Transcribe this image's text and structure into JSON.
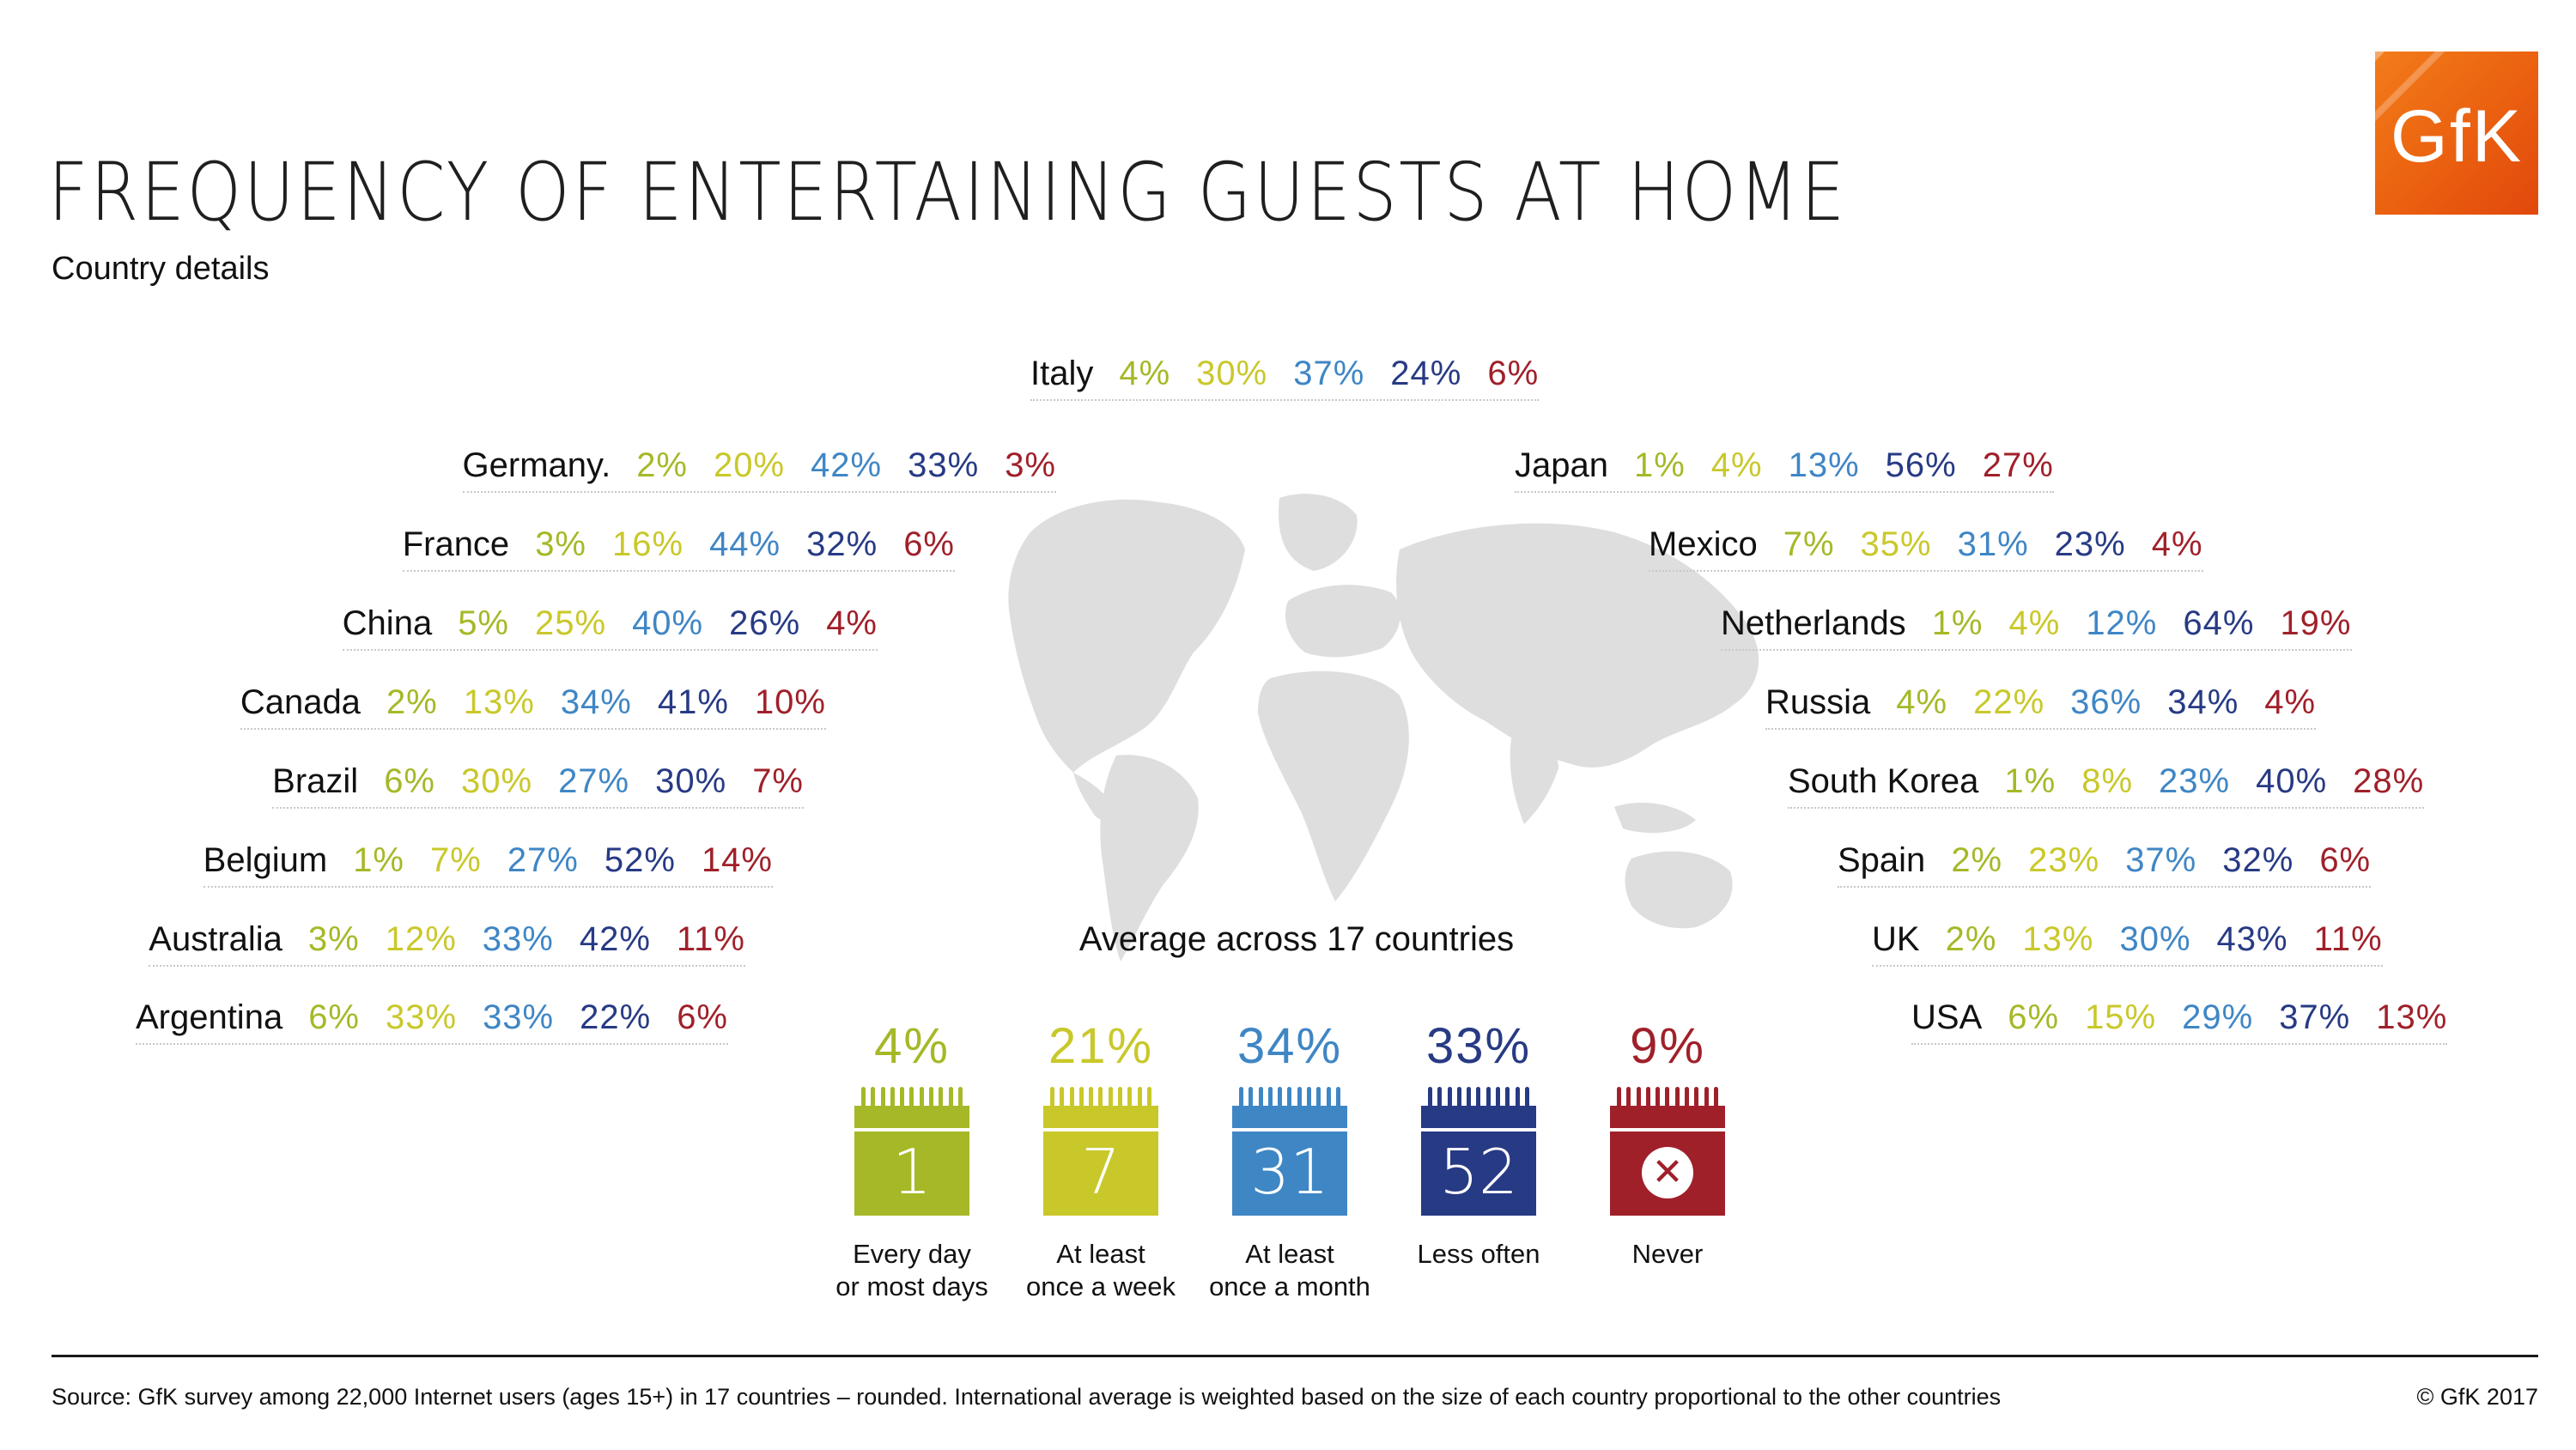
{
  "title": "FREQUENCY OF ENTERTAINING GUESTS AT HOME",
  "subtitle": "Country details",
  "logo": "GfK",
  "chart_data": {
    "type": "table",
    "categories": [
      "Every day or most days",
      "At least once a week",
      "At least once a month",
      "Less often",
      "Never"
    ],
    "colors": [
      "#a6b827",
      "#c9c82a",
      "#3f86c5",
      "#273a84",
      "#a0202a"
    ],
    "countries": [
      {
        "name": "Italy",
        "values": [
          "4%",
          "30%",
          "37%",
          "24%",
          "6%"
        ]
      },
      {
        "name": "Germany.",
        "values": [
          "2%",
          "20%",
          "42%",
          "33%",
          "3%"
        ]
      },
      {
        "name": "France",
        "values": [
          "3%",
          "16%",
          "44%",
          "32%",
          "6%"
        ]
      },
      {
        "name": "China",
        "values": [
          "5%",
          "25%",
          "40%",
          "26%",
          "4%"
        ]
      },
      {
        "name": "Canada",
        "values": [
          "2%",
          "13%",
          "34%",
          "41%",
          "10%"
        ]
      },
      {
        "name": "Brazil",
        "values": [
          "6%",
          "30%",
          "27%",
          "30%",
          "7%"
        ]
      },
      {
        "name": "Belgium",
        "values": [
          "1%",
          "7%",
          "27%",
          "52%",
          "14%"
        ]
      },
      {
        "name": "Australia",
        "values": [
          "3%",
          "12%",
          "33%",
          "42%",
          "11%"
        ]
      },
      {
        "name": "Argentina",
        "values": [
          "6%",
          "33%",
          "33%",
          "22%",
          "6%"
        ]
      },
      {
        "name": "Japan",
        "values": [
          "1%",
          "4%",
          "13%",
          "56%",
          "27%"
        ]
      },
      {
        "name": "Mexico",
        "values": [
          "7%",
          "35%",
          "31%",
          "23%",
          "4%"
        ]
      },
      {
        "name": "Netherlands",
        "values": [
          "1%",
          "4%",
          "12%",
          "64%",
          "19%"
        ]
      },
      {
        "name": "Russia",
        "values": [
          "4%",
          "22%",
          "36%",
          "34%",
          "4%"
        ]
      },
      {
        "name": "South Korea",
        "values": [
          "1%",
          "8%",
          "23%",
          "40%",
          "28%"
        ]
      },
      {
        "name": "Spain",
        "values": [
          "2%",
          "23%",
          "37%",
          "32%",
          "6%"
        ]
      },
      {
        "name": "UK",
        "values": [
          "2%",
          "13%",
          "30%",
          "43%",
          "11%"
        ]
      },
      {
        "name": "USA",
        "values": [
          "6%",
          "15%",
          "29%",
          "37%",
          "13%"
        ]
      }
    ],
    "average": {
      "title": "Average across 17 countries",
      "items": [
        {
          "pct": "4%",
          "icon": "1",
          "label": [
            "Every day",
            "or most days"
          ],
          "color": "#a6b827"
        },
        {
          "pct": "21%",
          "icon": "7",
          "label": [
            "At least",
            "once a week"
          ],
          "color": "#c9c82a"
        },
        {
          "pct": "34%",
          "icon": "31",
          "label": [
            "At least",
            "once a month"
          ],
          "color": "#3f86c5"
        },
        {
          "pct": "33%",
          "icon": "52",
          "label": [
            "Less often"
          ],
          "color": "#273a84"
        },
        {
          "pct": "9%",
          "icon": "x",
          "label": [
            "Never"
          ],
          "color": "#a0202a"
        }
      ]
    }
  },
  "footer": {
    "source": "Source: GfK survey among 22,000 Internet users (ages 15+) in 17 countries – rounded. International average is weighted based on the size of each country proportional to the other countries",
    "copyright": "© GfK 2017"
  }
}
